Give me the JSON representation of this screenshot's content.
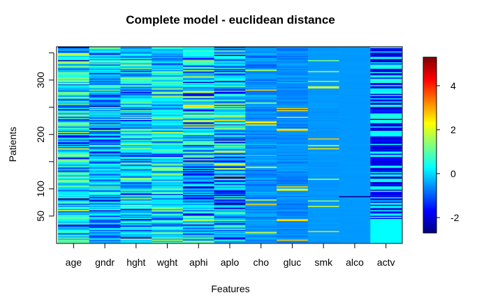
{
  "chart_data": {
    "type": "heatmap",
    "title": "Complete model - euclidean distance",
    "xlabel": "Features",
    "ylabel": "Patients",
    "categories": [
      "age",
      "gndr",
      "hght",
      "wght",
      "aphi",
      "aplo",
      "cho",
      "gluc",
      "smk",
      "alco",
      "actv"
    ],
    "y_ticks": [
      50,
      100,
      200,
      300
    ],
    "y_minor_ticks": [
      150,
      250,
      350
    ],
    "ylim": [
      1,
      360
    ],
    "colorbar": {
      "range": [
        -2.7,
        5.3
      ],
      "ticks": [
        -2,
        0,
        2,
        4
      ],
      "colormap": [
        "#00007f",
        "#0000ff",
        "#007fff",
        "#00ffff",
        "#7fff7f",
        "#ffff00",
        "#ff7f00",
        "#ff0000",
        "#7f0000"
      ]
    },
    "columns": {
      "age": {
        "base": 0.05,
        "spread": 1.4,
        "stripes": []
      },
      "gndr": {
        "base": -0.25,
        "spread": 1.1,
        "stripes": [
          [
            180,
            205,
            -1.0
          ]
        ]
      },
      "hght": {
        "base": 0.0,
        "spread": 1.2,
        "stripes": []
      },
      "wght": {
        "base": 0.0,
        "spread": 1.1,
        "stripes": []
      },
      "aphi": {
        "base": -0.1,
        "spread": 1.5,
        "stripes": [
          [
            200,
            260,
            0.9
          ],
          [
            80,
            150,
            -1.1
          ]
        ]
      },
      "aplo": {
        "base": -0.1,
        "spread": 1.4,
        "stripes": [
          [
            200,
            280,
            0.8
          ],
          [
            60,
            130,
            -1.0
          ]
        ]
      },
      "cho": {
        "base": -0.55,
        "spread": 0.3,
        "sparse_high": 0.06
      },
      "gluc": {
        "base": -0.6,
        "spread": 0.2,
        "sparse_high": 0.05
      },
      "smk": {
        "base": -0.5,
        "spread": 0.05,
        "sparse_high": 0.05
      },
      "alco": {
        "base": -0.5,
        "spread": 0.0,
        "sparse_dark": 0.02
      },
      "actv": {
        "base": 0.6,
        "spread": 0.0,
        "dark_fraction": 0.5
      }
    }
  }
}
